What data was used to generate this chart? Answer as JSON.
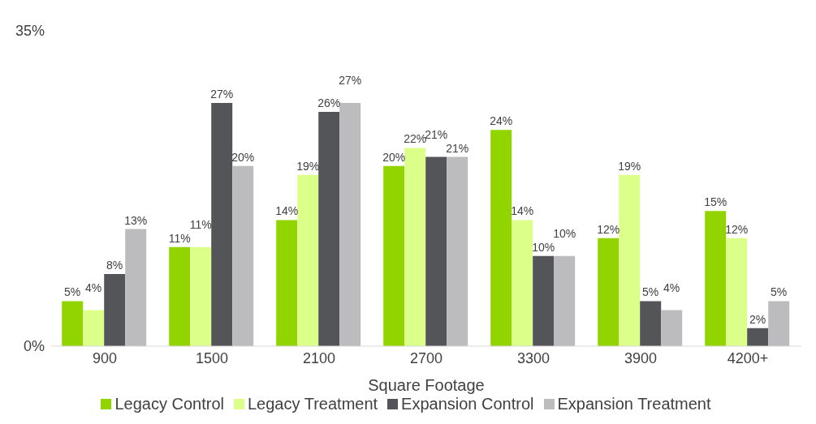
{
  "chart_data": {
    "type": "bar",
    "xlabel": "Square Footage",
    "categories": [
      "900",
      "1500",
      "2100",
      "2700",
      "3300",
      "3900",
      "4200+"
    ],
    "series": [
      {
        "name": "Legacy Control",
        "color": "#92d400",
        "values": [
          5,
          11,
          14,
          20,
          24,
          12,
          15
        ],
        "value_labels": [
          "5%",
          "11%",
          "14%",
          "20%",
          "24%",
          "12%",
          "15%"
        ]
      },
      {
        "name": "Legacy Treatment",
        "color": "#dcff8a",
        "values": [
          4,
          11,
          19,
          22,
          14,
          19,
          12
        ],
        "value_labels": [
          "4%",
          "11%",
          "19%",
          "22%",
          "14%",
          "19%",
          "12%"
        ]
      },
      {
        "name": "Expansion Control",
        "color": "#545558",
        "values": [
          8,
          27,
          26,
          21,
          10,
          5,
          2
        ],
        "value_labels": [
          "8%",
          "27%",
          "26%",
          "21%",
          "10%",
          "5%",
          "2%"
        ]
      },
      {
        "name": "Expansion Treatment",
        "color": "#bcbcbe",
        "values": [
          13,
          20,
          27,
          21,
          10,
          4,
          5
        ],
        "value_labels": [
          "13%",
          "20%",
          "27%",
          "21%",
          "10%",
          "4%",
          "5%"
        ]
      }
    ],
    "ylim": [
      0,
      35
    ],
    "yticks": [
      {
        "value": 0,
        "label": "0%"
      },
      {
        "value": 35,
        "label": "35%"
      }
    ],
    "grid": false,
    "legend": "bottom"
  }
}
